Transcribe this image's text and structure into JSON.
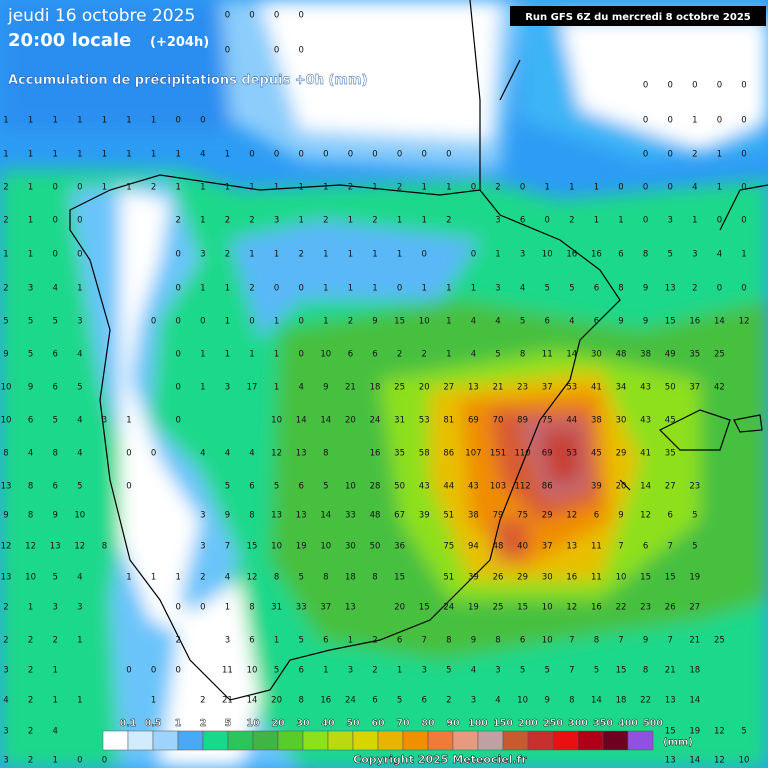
{
  "header": {
    "date": "jeudi 16 octobre 2025",
    "time": "20:00 locale",
    "lead": "(+204h)",
    "subtitle": "Accumulation de précipitations depuis +0h (mm)",
    "run": "Run GFS 6Z du mercredi 8 octobre 2025"
  },
  "grid": {
    "rows": [
      [
        null,
        null,
        null,
        null,
        null,
        null,
        null,
        null,
        null,
        0,
        0,
        0,
        0,
        null,
        null,
        null,
        null,
        null,
        null,
        null,
        null,
        null,
        null,
        null,
        null,
        null,
        null,
        null,
        null,
        null,
        null
      ],
      [
        null,
        null,
        null,
        null,
        null,
        null,
        null,
        null,
        null,
        0,
        null,
        0,
        0,
        null,
        null,
        null,
        null,
        null,
        null,
        null,
        null,
        null,
        null,
        null,
        null,
        null,
        null,
        null,
        null,
        null,
        null
      ],
      [
        null,
        null,
        null,
        null,
        null,
        null,
        null,
        null,
        null,
        null,
        null,
        null,
        null,
        null,
        null,
        null,
        null,
        null,
        null,
        null,
        null,
        null,
        null,
        null,
        null,
        null,
        0,
        0,
        0,
        0,
        0
      ],
      [
        1,
        1,
        1,
        1,
        1,
        1,
        1,
        0,
        0,
        null,
        null,
        null,
        null,
        null,
        null,
        null,
        null,
        null,
        null,
        null,
        null,
        null,
        null,
        null,
        null,
        null,
        0,
        0,
        1,
        0,
        0
      ],
      [
        1,
        1,
        1,
        1,
        1,
        1,
        1,
        1,
        4,
        1,
        0,
        0,
        0,
        0,
        0,
        0,
        0,
        0,
        0,
        null,
        null,
        null,
        null,
        null,
        null,
        null,
        0,
        0,
        2,
        1,
        0
      ],
      [
        2,
        1,
        0,
        0,
        1,
        1,
        2,
        1,
        1,
        1,
        1,
        1,
        1,
        1,
        2,
        1,
        2,
        1,
        1,
        0,
        2,
        0,
        1,
        1,
        1,
        0,
        0,
        0,
        4,
        1,
        0
      ],
      [
        2,
        1,
        0,
        0,
        null,
        null,
        null,
        2,
        1,
        2,
        2,
        3,
        1,
        2,
        1,
        2,
        1,
        1,
        2,
        null,
        3,
        6,
        0,
        2,
        1,
        1,
        0,
        3,
        1,
        0,
        0
      ],
      [
        1,
        1,
        0,
        0,
        null,
        null,
        null,
        0,
        3,
        2,
        1,
        1,
        2,
        1,
        1,
        1,
        1,
        0,
        null,
        0,
        1,
        3,
        10,
        16,
        16,
        6,
        8,
        5,
        3,
        4,
        1
      ],
      [
        2,
        3,
        4,
        1,
        null,
        null,
        null,
        0,
        1,
        1,
        2,
        0,
        0,
        1,
        1,
        1,
        0,
        1,
        1,
        1,
        3,
        4,
        5,
        5,
        6,
        8,
        9,
        13,
        2,
        0,
        0
      ],
      [
        5,
        5,
        5,
        3,
        null,
        null,
        0,
        0,
        0,
        1,
        0,
        1,
        0,
        1,
        2,
        9,
        15,
        10,
        1,
        4,
        4,
        5,
        6,
        4,
        6,
        9,
        9,
        15,
        16,
        14,
        12
      ],
      [
        9,
        5,
        6,
        4,
        null,
        null,
        null,
        0,
        1,
        1,
        1,
        1,
        0,
        10,
        6,
        6,
        2,
        2,
        1,
        4,
        5,
        8,
        11,
        14,
        30,
        48,
        38,
        49,
        35,
        25,
        null
      ],
      [
        10,
        9,
        6,
        5,
        null,
        null,
        null,
        0,
        1,
        3,
        17,
        1,
        4,
        9,
        21,
        18,
        25,
        20,
        27,
        13,
        21,
        23,
        37,
        53,
        41,
        34,
        43,
        50,
        37,
        42,
        null
      ],
      [
        10,
        6,
        5,
        4,
        3,
        1,
        null,
        0,
        null,
        null,
        null,
        10,
        14,
        14,
        20,
        24,
        31,
        53,
        81,
        69,
        70,
        89,
        75,
        44,
        38,
        30,
        43,
        45,
        null,
        null,
        null
      ],
      [
        8,
        4,
        8,
        4,
        null,
        0,
        0,
        null,
        4,
        4,
        4,
        12,
        13,
        8,
        null,
        16,
        35,
        58,
        86,
        107,
        151,
        110,
        69,
        53,
        45,
        29,
        41,
        35,
        null,
        null,
        null
      ],
      [
        13,
        8,
        6,
        5,
        null,
        0,
        null,
        null,
        null,
        5,
        6,
        5,
        6,
        5,
        10,
        28,
        50,
        43,
        44,
        43,
        103,
        112,
        86,
        null,
        39,
        20,
        14,
        27,
        23,
        null,
        null
      ],
      [
        9,
        8,
        9,
        10,
        null,
        null,
        null,
        null,
        3,
        9,
        8,
        13,
        13,
        14,
        33,
        48,
        67,
        39,
        51,
        38,
        79,
        75,
        29,
        12,
        6,
        9,
        12,
        6,
        5,
        null,
        null
      ],
      [
        12,
        12,
        13,
        12,
        8,
        null,
        null,
        null,
        3,
        7,
        15,
        10,
        19,
        10,
        30,
        50,
        36,
        null,
        75,
        94,
        48,
        40,
        37,
        13,
        11,
        7,
        6,
        7,
        5,
        null,
        null
      ],
      [
        13,
        10,
        5,
        4,
        null,
        1,
        1,
        1,
        2,
        4,
        12,
        8,
        5,
        8,
        18,
        8,
        15,
        null,
        51,
        39,
        26,
        29,
        30,
        16,
        11,
        10,
        15,
        15,
        19,
        null,
        null
      ],
      [
        2,
        1,
        3,
        3,
        null,
        null,
        null,
        0,
        0,
        1,
        8,
        31,
        33,
        37,
        13,
        null,
        20,
        15,
        24,
        19,
        25,
        15,
        10,
        12,
        16,
        22,
        23,
        26,
        27,
        null,
        null
      ],
      [
        2,
        2,
        2,
        1,
        null,
        null,
        null,
        2,
        null,
        3,
        6,
        1,
        5,
        6,
        1,
        2,
        6,
        7,
        8,
        9,
        8,
        6,
        10,
        7,
        8,
        7,
        9,
        7,
        21,
        25,
        null
      ],
      [
        3,
        2,
        1,
        null,
        null,
        0,
        0,
        0,
        null,
        11,
        10,
        5,
        6,
        1,
        3,
        2,
        1,
        3,
        5,
        4,
        3,
        5,
        5,
        7,
        5,
        15,
        8,
        21,
        18,
        null,
        null
      ],
      [
        4,
        2,
        1,
        1,
        null,
        null,
        1,
        null,
        2,
        21,
        14,
        20,
        8,
        16,
        24,
        6,
        5,
        6,
        2,
        3,
        4,
        10,
        9,
        8,
        14,
        18,
        22,
        13,
        14,
        null,
        null
      ],
      [
        3,
        2,
        4,
        null,
        null,
        null,
        null,
        null,
        null,
        null,
        null,
        null,
        null,
        null,
        null,
        null,
        null,
        null,
        null,
        null,
        null,
        null,
        null,
        null,
        null,
        null,
        null,
        15,
        19,
        12,
        5
      ],
      [
        3,
        2,
        1,
        0,
        0,
        null,
        null,
        null,
        null,
        null,
        null,
        null,
        null,
        null,
        null,
        null,
        null,
        null,
        null,
        null,
        null,
        null,
        null,
        null,
        null,
        null,
        null,
        13,
        14,
        12,
        10
      ]
    ]
  },
  "legend": {
    "labels": [
      "0.1",
      "0.5",
      "1",
      "2",
      "5",
      "10",
      "20",
      "30",
      "40",
      "50",
      "60",
      "70",
      "80",
      "90",
      "100",
      "150",
      "200",
      "250",
      "300",
      "350",
      "400",
      "500"
    ],
    "colors": [
      "#ffffff",
      "#d2ecff",
      "#9ed4fb",
      "#4aa8f4",
      "#18d88a",
      "#2ec45c",
      "#40b444",
      "#58cc2c",
      "#8ce01c",
      "#bcd810",
      "#d8d400",
      "#e8b400",
      "#f09000",
      "#f07a3a",
      "#e89a80",
      "#c0a0a0",
      "#c85a30",
      "#c83030",
      "#e81010",
      "#b00018",
      "#700020",
      "#9050e0"
    ],
    "unit": "(mm)"
  },
  "footer": {
    "copyright": "Copyright 2025 Meteociel.fr"
  }
}
